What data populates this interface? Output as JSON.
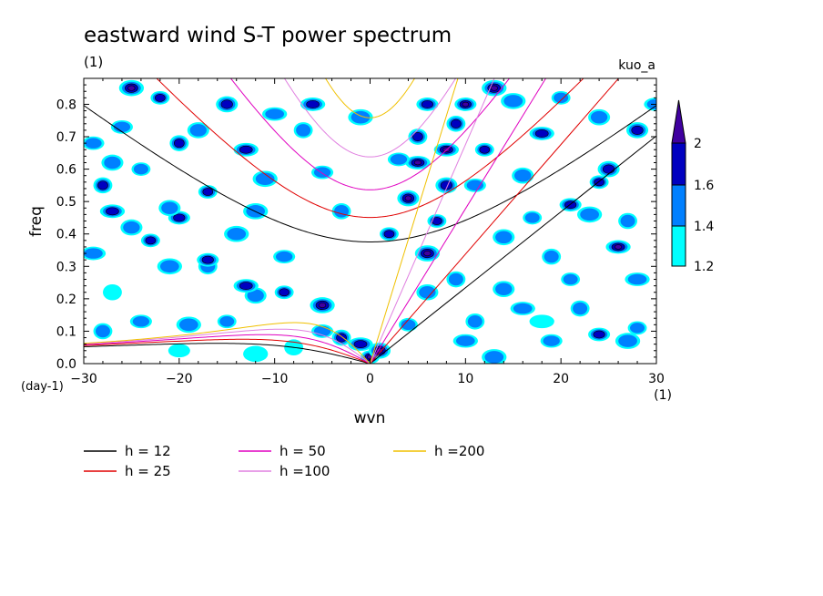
{
  "chart_data": {
    "type": "contour",
    "title": "eastward wind S-T power spectrum",
    "subtitle": "(1)",
    "run_label": "kuo_a",
    "xlabel": "wvn",
    "ylabel": "freq",
    "x_unit": "(1)",
    "y_unit": "(day-1)",
    "xlim": [
      -30,
      30
    ],
    "ylim": [
      0,
      0.88
    ],
    "x_ticks": [
      -30,
      -20,
      -10,
      0,
      10,
      20,
      30
    ],
    "x_tick_labels": [
      "−30",
      "−20",
      "−10",
      "0",
      "10",
      "20",
      "30"
    ],
    "y_ticks": [
      0.0,
      0.1,
      0.2,
      0.3,
      0.4,
      0.5,
      0.6,
      0.7,
      0.8
    ],
    "y_tick_labels": [
      "0.0",
      "0.1",
      "0.2",
      "0.3",
      "0.4",
      "0.5",
      "0.6",
      "0.7",
      "0.8"
    ],
    "colorbar": {
      "levels": [
        1.2,
        1.4,
        1.6,
        2
      ],
      "level_labels": [
        "1.2",
        "1.4",
        "1.6",
        "2"
      ],
      "colors": [
        "#00ffff",
        "#0080ff",
        "#0000c0",
        "#4000a0"
      ]
    },
    "dispersion_curves": [
      {
        "label": "h = 12",
        "h": 12,
        "color": "#000000"
      },
      {
        "label": "h = 25",
        "h": 25,
        "color": "#e00000"
      },
      {
        "label": "h = 50",
        "h": 50,
        "color": "#e000c0"
      },
      {
        "label": "h =100",
        "h": 100,
        "color": "#e080e0"
      },
      {
        "label": "h =200",
        "h": 200,
        "color": "#f0c000"
      }
    ],
    "power_regions": [
      {
        "wvn": 0,
        "freq": 0.02,
        "level": 4
      },
      {
        "wvn": 1,
        "freq": 0.04,
        "level": 4
      },
      {
        "wvn": -1,
        "freq": 0.06,
        "level": 3
      },
      {
        "wvn": -3,
        "freq": 0.08,
        "level": 3
      },
      {
        "wvn": -5,
        "freq": 0.1,
        "level": 2
      },
      {
        "wvn": -5,
        "freq": 0.18,
        "level": 4
      },
      {
        "wvn": -9,
        "freq": 0.22,
        "level": 3
      },
      {
        "wvn": -12,
        "freq": 0.21,
        "level": 2
      },
      {
        "wvn": -13,
        "freq": 0.24,
        "level": 3
      },
      {
        "wvn": -17,
        "freq": 0.3,
        "level": 2
      },
      {
        "wvn": -17,
        "freq": 0.32,
        "level": 3
      },
      {
        "wvn": -21,
        "freq": 0.3,
        "level": 2
      },
      {
        "wvn": -23,
        "freq": 0.38,
        "level": 3
      },
      {
        "wvn": -25,
        "freq": 0.42,
        "level": 2
      },
      {
        "wvn": -27,
        "freq": 0.47,
        "level": 3
      },
      {
        "wvn": -28,
        "freq": 0.55,
        "level": 3
      },
      {
        "wvn": -20,
        "freq": 0.45,
        "level": 3
      },
      {
        "wvn": -14,
        "freq": 0.4,
        "level": 2
      },
      {
        "wvn": -17,
        "freq": 0.53,
        "level": 3
      },
      {
        "wvn": -21,
        "freq": 0.48,
        "level": 2
      },
      {
        "wvn": -13,
        "freq": 0.66,
        "level": 3
      },
      {
        "wvn": -20,
        "freq": 0.68,
        "level": 3
      },
      {
        "wvn": -26,
        "freq": 0.73,
        "level": 2
      },
      {
        "wvn": -25,
        "freq": 0.85,
        "level": 4
      },
      {
        "wvn": -22,
        "freq": 0.82,
        "level": 3
      },
      {
        "wvn": -15,
        "freq": 0.8,
        "level": 3
      },
      {
        "wvn": -6,
        "freq": 0.8,
        "level": 3
      },
      {
        "wvn": -7,
        "freq": 0.72,
        "level": 2
      },
      {
        "wvn": -5,
        "freq": 0.59,
        "level": 2
      },
      {
        "wvn": -11,
        "freq": 0.57,
        "level": 2
      },
      {
        "wvn": 2,
        "freq": 0.4,
        "level": 3
      },
      {
        "wvn": 4,
        "freq": 0.51,
        "level": 4
      },
      {
        "wvn": 5,
        "freq": 0.62,
        "level": 4
      },
      {
        "wvn": 5,
        "freq": 0.7,
        "level": 3
      },
      {
        "wvn": 6,
        "freq": 0.8,
        "level": 3
      },
      {
        "wvn": 6,
        "freq": 0.34,
        "level": 4
      },
      {
        "wvn": 7,
        "freq": 0.44,
        "level": 3
      },
      {
        "wvn": 8,
        "freq": 0.55,
        "level": 3
      },
      {
        "wvn": 8,
        "freq": 0.66,
        "level": 4
      },
      {
        "wvn": 9,
        "freq": 0.74,
        "level": 3
      },
      {
        "wvn": 10,
        "freq": 0.8,
        "level": 4
      },
      {
        "wvn": 13,
        "freq": 0.85,
        "level": 4
      },
      {
        "wvn": 12,
        "freq": 0.66,
        "level": 3
      },
      {
        "wvn": 16,
        "freq": 0.58,
        "level": 2
      },
      {
        "wvn": 18,
        "freq": 0.71,
        "level": 3
      },
      {
        "wvn": 19,
        "freq": 0.33,
        "level": 2
      },
      {
        "wvn": 21,
        "freq": 0.49,
        "level": 3
      },
      {
        "wvn": 23,
        "freq": 0.46,
        "level": 2
      },
      {
        "wvn": 24,
        "freq": 0.56,
        "level": 3
      },
      {
        "wvn": 25,
        "freq": 0.6,
        "level": 3
      },
      {
        "wvn": 26,
        "freq": 0.36,
        "level": 4
      },
      {
        "wvn": 22,
        "freq": 0.17,
        "level": 2
      },
      {
        "wvn": 24,
        "freq": 0.09,
        "level": 3
      },
      {
        "wvn": 27,
        "freq": 0.07,
        "level": 2
      },
      {
        "wvn": 28,
        "freq": 0.11,
        "level": 2
      },
      {
        "wvn": 14,
        "freq": 0.23,
        "level": 2
      },
      {
        "wvn": 16,
        "freq": 0.17,
        "level": 2
      },
      {
        "wvn": 11,
        "freq": 0.13,
        "level": 2
      },
      {
        "wvn": 19,
        "freq": 0.07,
        "level": 2
      },
      {
        "wvn": 13,
        "freq": 0.02,
        "level": 2
      },
      {
        "wvn": 21,
        "freq": 0.26,
        "level": 2
      },
      {
        "wvn": 28,
        "freq": 0.72,
        "level": 3
      },
      {
        "wvn": 30,
        "freq": 0.8,
        "level": 2
      },
      {
        "wvn": -28,
        "freq": 0.1,
        "level": 2
      },
      {
        "wvn": -24,
        "freq": 0.13,
        "level": 2
      },
      {
        "wvn": -19,
        "freq": 0.12,
        "level": 2
      },
      {
        "wvn": -15,
        "freq": 0.13,
        "level": 2
      },
      {
        "wvn": -27,
        "freq": 0.62,
        "level": 2
      },
      {
        "wvn": -29,
        "freq": 0.34,
        "level": 2
      },
      {
        "wvn": -3,
        "freq": 0.47,
        "level": 2
      },
      {
        "wvn": 3,
        "freq": 0.63,
        "level": 2
      },
      {
        "wvn": -1,
        "freq": 0.76,
        "level": 2
      },
      {
        "wvn": 17,
        "freq": 0.45,
        "level": 2
      },
      {
        "wvn": 14,
        "freq": 0.39,
        "level": 2
      },
      {
        "wvn": 28,
        "freq": 0.26,
        "level": 2
      },
      {
        "wvn": 27,
        "freq": 0.44,
        "level": 2
      },
      {
        "wvn": -9,
        "freq": 0.33,
        "level": 2
      },
      {
        "wvn": -12,
        "freq": 0.47,
        "level": 2
      },
      {
        "wvn": -24,
        "freq": 0.6,
        "level": 2
      },
      {
        "wvn": -18,
        "freq": 0.72,
        "level": 2
      },
      {
        "wvn": -10,
        "freq": 0.77,
        "level": 2
      },
      {
        "wvn": 9,
        "freq": 0.26,
        "level": 2
      },
      {
        "wvn": 11,
        "freq": 0.55,
        "level": 2
      },
      {
        "wvn": 15,
        "freq": 0.81,
        "level": 2
      },
      {
        "wvn": 20,
        "freq": 0.82,
        "level": 2
      },
      {
        "wvn": 24,
        "freq": 0.76,
        "level": 2
      },
      {
        "wvn": 10,
        "freq": 0.07,
        "level": 2
      },
      {
        "wvn": -8,
        "freq": 0.05,
        "level": 1
      },
      {
        "wvn": -20,
        "freq": 0.04,
        "level": 1
      },
      {
        "wvn": -12,
        "freq": 0.03,
        "level": 1
      },
      {
        "wvn": 4,
        "freq": 0.12,
        "level": 2
      },
      {
        "wvn": 6,
        "freq": 0.22,
        "level": 2
      },
      {
        "wvn": 18,
        "freq": 0.13,
        "level": 1
      },
      {
        "wvn": -27,
        "freq": 0.22,
        "level": 1
      },
      {
        "wvn": -29,
        "freq": 0.68,
        "level": 2
      }
    ]
  }
}
